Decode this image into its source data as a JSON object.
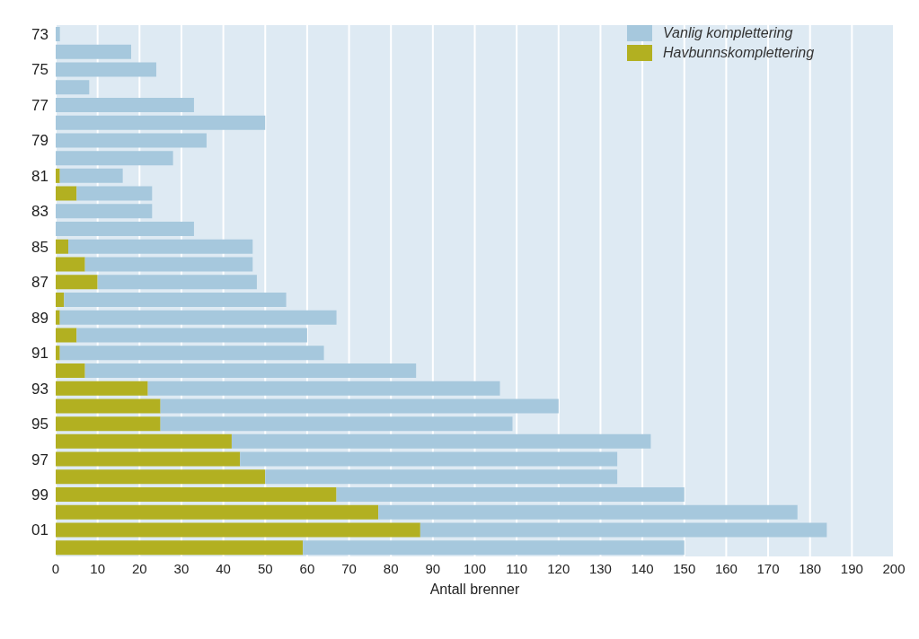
{
  "chart_data": {
    "type": "bar",
    "orientation": "horizontal",
    "stacked": true,
    "xlabel": "Antall brenner",
    "categories": [
      "73",
      null,
      "75",
      null,
      "77",
      null,
      "79",
      null,
      "81",
      null,
      "83",
      null,
      "85",
      null,
      "87",
      null,
      "89",
      null,
      "91",
      null,
      "93",
      null,
      "95",
      null,
      "97",
      null,
      "99",
      null,
      "01",
      null
    ],
    "series": [
      {
        "name": "Havbunnskomplettering",
        "color": "#b2b021",
        "values": [
          0,
          0,
          0,
          0,
          0,
          0,
          0,
          0,
          1,
          5,
          0,
          0,
          3,
          7,
          10,
          2,
          1,
          5,
          1,
          7,
          22,
          25,
          25,
          42,
          44,
          50,
          67,
          77,
          87,
          59
        ]
      },
      {
        "name": "Vanlig komplettering",
        "color": "#a6c8dd",
        "values": [
          1,
          18,
          24,
          8,
          33,
          50,
          36,
          28,
          15,
          18,
          23,
          33,
          44,
          40,
          38,
          53,
          66,
          55,
          63,
          79,
          84,
          95,
          84,
          100,
          90,
          84,
          83,
          100,
          97,
          91
        ]
      }
    ],
    "xlim": [
      0,
      200
    ],
    "xticks": [
      0,
      10,
      20,
      30,
      40,
      50,
      60,
      70,
      80,
      90,
      100,
      110,
      120,
      130,
      140,
      150,
      160,
      170,
      180,
      190,
      200
    ],
    "grid": "x",
    "legend": "top right"
  }
}
